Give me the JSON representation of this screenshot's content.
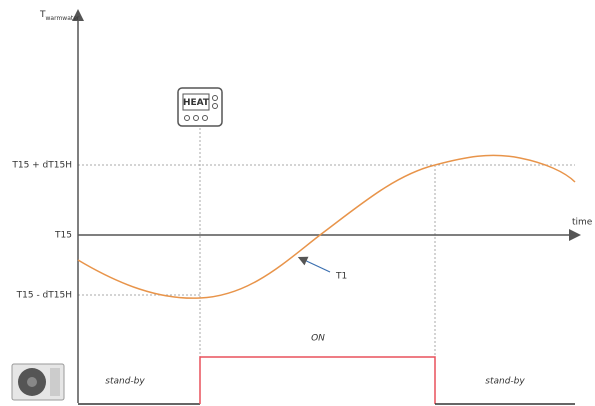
{
  "y_axis": {
    "label": "T",
    "subscript": "warmwater"
  },
  "x_axis": {
    "label": "time"
  },
  "levels": {
    "upper": "T15 + dT15H",
    "middle": "T15",
    "lower": "T15 - dT15H"
  },
  "curve": {
    "label": "T1"
  },
  "thermostat": {
    "label": "HEAT"
  },
  "states": {
    "on": "ON",
    "before": "stand-by",
    "after": "stand-by"
  }
}
